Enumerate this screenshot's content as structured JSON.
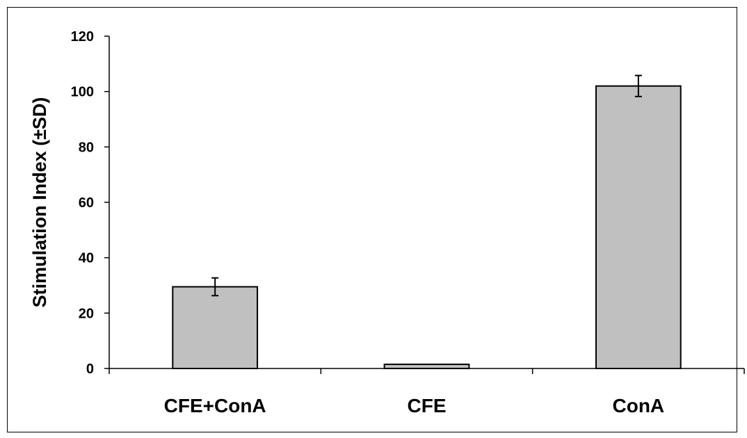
{
  "chart_data": {
    "type": "bar",
    "title": "",
    "xlabel": "",
    "ylabel": "Stimulation Index (±SD)",
    "categories": [
      "CFE+ConA",
      "CFE",
      "ConA"
    ],
    "values": [
      29.5,
      1.5,
      102
    ],
    "errors": [
      3.2,
      0,
      3.8
    ],
    "ylim": [
      0,
      120
    ],
    "yticks": [
      "0",
      "20",
      "40",
      "60",
      "80",
      "100",
      "120"
    ],
    "grid": false,
    "bar_color": "#c0c0c0",
    "edge_color": "#000000"
  }
}
